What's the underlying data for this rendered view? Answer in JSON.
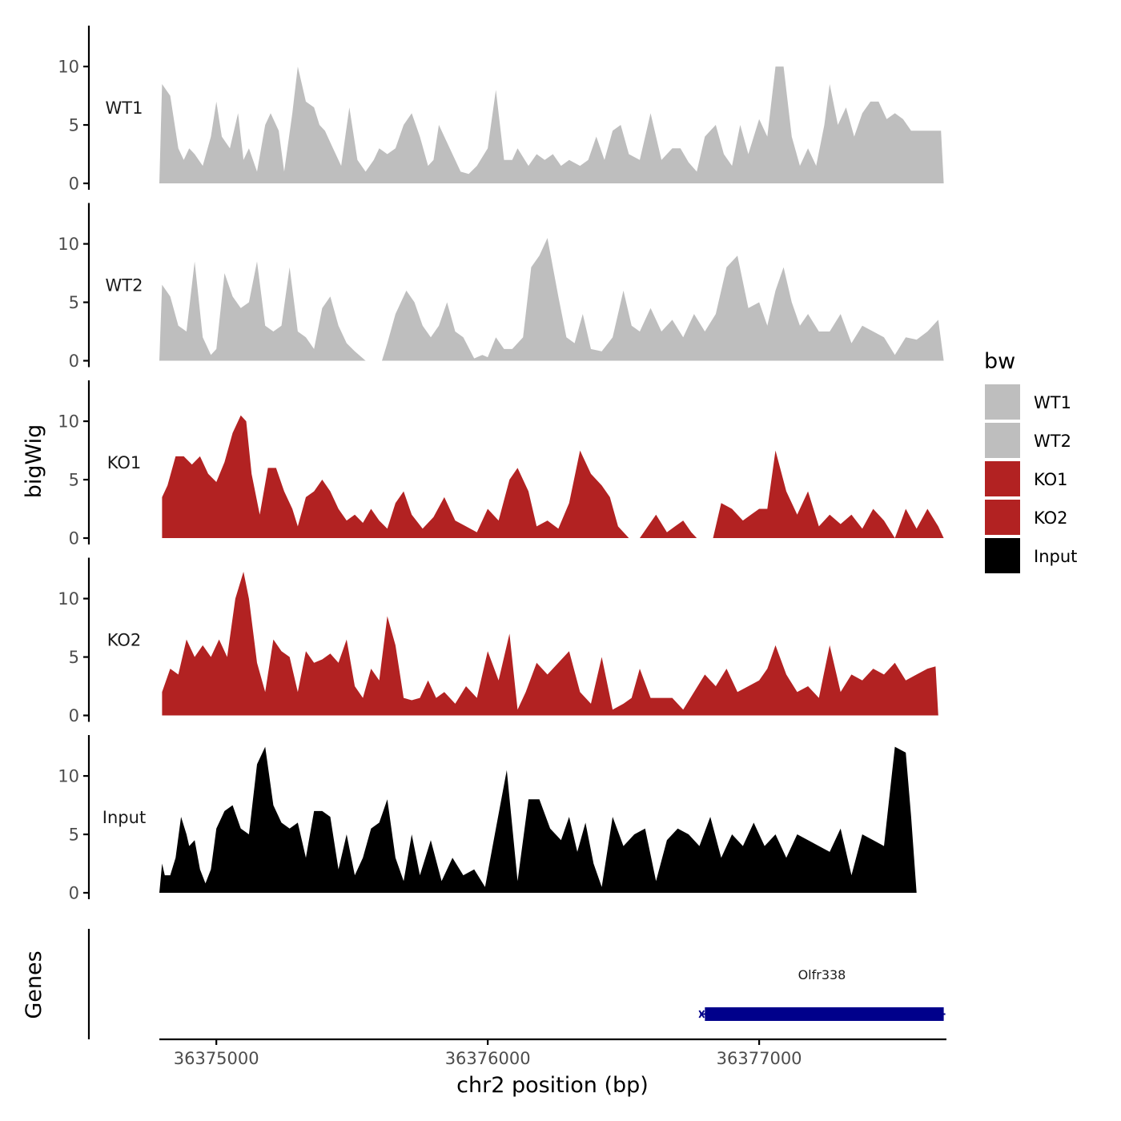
{
  "chart_data": {
    "type": "area",
    "title": "",
    "xlabel": "chr2 position (bp)",
    "ylabel": "bigWig",
    "genes_label": "Genes",
    "xlim": [
      36374790,
      36377690
    ],
    "ylim": [
      0,
      13.5
    ],
    "x_ticks": [
      {
        "value": 36375000,
        "label": "36375000"
      },
      {
        "value": 36376000,
        "label": "36376000"
      },
      {
        "value": 36377000,
        "label": "36377000"
      }
    ],
    "y_ticks": [
      {
        "value": 0,
        "label": "0"
      },
      {
        "value": 5,
        "label": "5"
      },
      {
        "value": 10,
        "label": "10"
      }
    ],
    "legend": {
      "title": "bw",
      "position": "right",
      "entries": [
        {
          "label": "WT1",
          "color": "#bebebe"
        },
        {
          "label": "WT2",
          "color": "#bebebe"
        },
        {
          "label": "KO1",
          "color": "#b22222"
        },
        {
          "label": "KO2",
          "color": "#b22222"
        },
        {
          "label": "Input",
          "color": "#000000"
        }
      ]
    },
    "series": [
      {
        "name": "WT1",
        "color": "#bebebe",
        "x": [
          36374790,
          36374800,
          36374830,
          36374860,
          36374880,
          36374900,
          36374920,
          36374950,
          36374980,
          36375000,
          36375020,
          36375050,
          36375080,
          36375100,
          36375120,
          36375150,
          36375180,
          36375200,
          36375230,
          36375250,
          36375280,
          36375300,
          36375330,
          36375360,
          36375380,
          36375400,
          36375430,
          36375460,
          36375490,
          36375520,
          36375550,
          36375580,
          36375600,
          36375630,
          36375660,
          36375690,
          36375720,
          36375750,
          36375780,
          36375800,
          36375820,
          36375860,
          36375900,
          36375930,
          36375960,
          36376000,
          36376030,
          36376060,
          36376090,
          36376110,
          36376150,
          36376180,
          36376210,
          36376240,
          36376270,
          36376300,
          36376340,
          36376370,
          36376400,
          36376430,
          36376460,
          36376490,
          36376520,
          36376560,
          36376600,
          36376640,
          36376680,
          36376710,
          36376740,
          36376770,
          36376800,
          36376840,
          36376870,
          36376900,
          36376930,
          36376960,
          36377000,
          36377030,
          36377060,
          36377090,
          36377120,
          36377150,
          36377180,
          36377210,
          36377240,
          36377260,
          36377290,
          36377320,
          36377350,
          36377380,
          36377410,
          36377440,
          36377470,
          36377500,
          36377530,
          36377560,
          36377590,
          36377620,
          36377650,
          36377670,
          36377680
        ],
        "values": [
          0,
          8.5,
          7.5,
          3,
          2,
          3,
          2.5,
          1.5,
          4,
          7,
          4,
          3,
          6,
          2,
          3,
          1,
          5,
          6,
          4.5,
          1,
          6,
          10,
          7,
          6.5,
          5,
          4.5,
          3,
          1.5,
          6.5,
          2,
          1,
          2,
          3,
          2.5,
          3,
          5,
          6,
          4,
          1.5,
          2,
          5,
          3,
          1,
          0.8,
          1.5,
          3,
          8,
          2,
          2,
          3,
          1.5,
          2.5,
          2,
          2.5,
          1.5,
          2,
          1.5,
          2,
          4,
          2,
          4.5,
          5,
          2.5,
          2,
          6,
          2,
          3,
          3,
          1.8,
          1,
          4,
          5,
          2.5,
          1.5,
          5,
          2.5,
          5.5,
          4,
          10,
          10,
          4,
          1.5,
          3,
          1.5,
          5,
          8.5,
          5,
          6.5,
          4,
          6,
          7,
          7,
          5.5,
          6,
          5.5,
          4.5,
          4.5,
          4.5,
          4.5,
          4.5,
          0
        ]
      },
      {
        "name": "WT2",
        "color": "#bebebe",
        "x": [
          36374790,
          36374800,
          36374830,
          36374860,
          36374890,
          36374920,
          36374950,
          36374980,
          36375000,
          36375030,
          36375060,
          36375090,
          36375120,
          36375150,
          36375180,
          36375210,
          36375240,
          36375270,
          36375300,
          36375330,
          36375360,
          36375390,
          36375420,
          36375450,
          36375480,
          36375510,
          36375550,
          36375570,
          36375590,
          36375600,
          36375610,
          36375630,
          36375660,
          36375700,
          36375730,
          36375760,
          36375790,
          36375820,
          36375850,
          36375880,
          36375910,
          36375950,
          36375980,
          36376000,
          36376030,
          36376060,
          36376090,
          36376130,
          36376160,
          36376190,
          36376220,
          36376260,
          36376290,
          36376320,
          36376350,
          36376380,
          36376420,
          36376460,
          36376500,
          36376530,
          36376560,
          36376600,
          36376640,
          36376680,
          36376720,
          36376760,
          36376800,
          36376840,
          36376880,
          36376920,
          36376960,
          36377000,
          36377030,
          36377060,
          36377090,
          36377120,
          36377150,
          36377180,
          36377220,
          36377260,
          36377300,
          36377340,
          36377380,
          36377420,
          36377460,
          36377500,
          36377540,
          36377580,
          36377620,
          36377660,
          36377680
        ],
        "values": [
          0,
          6.5,
          5.5,
          3,
          2.5,
          8.5,
          2,
          0.5,
          1,
          7.5,
          5.5,
          4.5,
          5,
          8.5,
          3,
          2.5,
          3,
          8,
          2.5,
          2,
          1,
          4.5,
          5.5,
          3,
          1.5,
          0.8,
          0,
          0,
          0,
          0,
          0,
          1.5,
          4,
          6,
          5,
          3,
          2,
          3,
          5,
          2.5,
          2,
          0.2,
          0.5,
          0.3,
          2,
          1,
          1,
          2,
          8,
          9,
          10.5,
          5.5,
          2,
          1.5,
          4,
          1,
          0.8,
          2,
          6,
          3,
          2.5,
          4.5,
          2.5,
          3.5,
          2,
          4,
          2.5,
          4,
          8,
          9,
          4.5,
          5,
          3,
          6,
          8,
          5,
          3,
          4,
          2.5,
          2.5,
          4,
          1.5,
          3,
          2.5,
          2,
          0.5,
          2,
          1.8,
          2.5,
          3.5,
          0
        ]
      },
      {
        "name": "KO1",
        "color": "#b22222",
        "x": [
          36374800,
          36374820,
          36374850,
          36374880,
          36374910,
          36374940,
          36374970,
          36375000,
          36375030,
          36375060,
          36375090,
          36375110,
          36375130,
          36375160,
          36375190,
          36375220,
          36375250,
          36375280,
          36375300,
          36375330,
          36375360,
          36375390,
          36375420,
          36375450,
          36375480,
          36375510,
          36375540,
          36375570,
          36375600,
          36375630,
          36375660,
          36375690,
          36375720,
          36375760,
          36375800,
          36375840,
          36375880,
          36375920,
          36375960,
          36376000,
          36376040,
          36376080,
          36376110,
          36376150,
          36376180,
          36376220,
          36376260,
          36376300,
          36376340,
          36376380,
          36376420,
          36376450,
          36376480,
          36376520,
          36376560,
          36376590,
          36376620,
          36376660,
          36376690,
          36376720,
          36376750,
          36376770,
          36376800,
          36376830,
          36376860,
          36376900,
          36376940,
          36376970,
          36377000,
          36377030,
          36377060,
          36377100,
          36377140,
          36377180,
          36377220,
          36377260,
          36377300,
          36377340,
          36377380,
          36377420,
          36377460,
          36377500,
          36377540,
          36377580,
          36377620,
          36377660,
          36377680
        ],
        "values": [
          3.5,
          4.5,
          7,
          7,
          6.3,
          7,
          5.5,
          4.8,
          6.5,
          9,
          10.5,
          10,
          5.5,
          2,
          6,
          6,
          4,
          2.5,
          1,
          3.5,
          4,
          5,
          4,
          2.5,
          1.5,
          2,
          1.3,
          2.5,
          1.5,
          0.8,
          3,
          4,
          2,
          0.8,
          1.8,
          3.5,
          1.5,
          1,
          0.5,
          2.5,
          1.5,
          5,
          6,
          4,
          1,
          1.5,
          0.8,
          3,
          7.5,
          5.5,
          4.5,
          3.5,
          1,
          0,
          0,
          1,
          2,
          0.5,
          1,
          1.5,
          0.5,
          0,
          0,
          0,
          3,
          2.5,
          1.5,
          2,
          2.5,
          2.5,
          7.5,
          4,
          2,
          4,
          1,
          2,
          1.2,
          2,
          0.8,
          2.5,
          1.5,
          0,
          2.5,
          0.8,
          2.5,
          1,
          0
        ]
      },
      {
        "name": "KO2",
        "color": "#b22222",
        "x": [
          36374800,
          36374830,
          36374860,
          36374890,
          36374920,
          36374950,
          36374980,
          36375010,
          36375040,
          36375070,
          36375100,
          36375120,
          36375150,
          36375180,
          36375210,
          36375240,
          36375270,
          36375300,
          36375330,
          36375360,
          36375390,
          36375420,
          36375450,
          36375480,
          36375510,
          36375540,
          36375570,
          36375600,
          36375630,
          36375660,
          36375690,
          36375720,
          36375750,
          36375780,
          36375810,
          36375840,
          36375880,
          36375920,
          36375960,
          36376000,
          36376040,
          36376080,
          36376110,
          36376140,
          36376180,
          36376220,
          36376260,
          36376300,
          36376340,
          36376380,
          36376420,
          36376460,
          36376500,
          36376530,
          36376560,
          36376600,
          36376640,
          36376680,
          36376720,
          36376760,
          36376800,
          36376840,
          36376880,
          36376920,
          36376960,
          36377000,
          36377030,
          36377060,
          36377100,
          36377140,
          36377180,
          36377220,
          36377260,
          36377300,
          36377340,
          36377380,
          36377420,
          36377460,
          36377500,
          36377540,
          36377580,
          36377620,
          36377650,
          36377660
        ],
        "values": [
          2,
          4,
          3.5,
          6.5,
          5,
          6,
          5,
          6.5,
          5,
          10,
          12.3,
          10,
          4.5,
          2,
          6.5,
          5.5,
          5,
          2,
          5.5,
          4.5,
          4.8,
          5.3,
          4.5,
          6.5,
          2.5,
          1.5,
          4,
          3,
          8.5,
          6,
          1.5,
          1.3,
          1.5,
          3,
          1.5,
          2,
          1,
          2.5,
          1.5,
          5.5,
          3,
          7,
          0.5,
          2,
          4.5,
          3.5,
          4.5,
          5.5,
          2,
          1,
          5,
          0.5,
          1,
          1.5,
          4,
          1.5,
          1.5,
          1.5,
          0.5,
          2,
          3.5,
          2.5,
          4,
          2,
          2.5,
          3,
          4,
          6,
          3.5,
          2,
          2.5,
          1.5,
          6,
          2,
          3.5,
          3,
          4,
          3.5,
          4.5,
          3,
          3.5,
          4,
          4.2,
          0
        ]
      },
      {
        "name": "Input",
        "color": "#000000",
        "x": [
          36374790,
          36374800,
          36374810,
          36374830,
          36374850,
          36374870,
          36374890,
          36374900,
          36374920,
          36374940,
          36374960,
          36374980,
          36375000,
          36375030,
          36375060,
          36375090,
          36375120,
          36375150,
          36375180,
          36375210,
          36375240,
          36375270,
          36375300,
          36375330,
          36375360,
          36375390,
          36375420,
          36375450,
          36375480,
          36375510,
          36375540,
          36375570,
          36375600,
          36375630,
          36375660,
          36375690,
          36375720,
          36375750,
          36375790,
          36375830,
          36375870,
          36375910,
          36375950,
          36375990,
          36376030,
          36376070,
          36376110,
          36376150,
          36376190,
          36376230,
          36376270,
          36376300,
          36376330,
          36376360,
          36376390,
          36376420,
          36376460,
          36376500,
          36376540,
          36376580,
          36376620,
          36376660,
          36376700,
          36376740,
          36376780,
          36376820,
          36376860,
          36376900,
          36376940,
          36376980,
          36377020,
          36377060,
          36377100,
          36377140,
          36377180,
          36377220,
          36377260,
          36377300,
          36377340,
          36377380,
          36377420,
          36377460,
          36377500,
          36377540,
          36377560,
          36377580,
          36377600,
          36377640,
          36377680,
          36377690
        ],
        "values": [
          0,
          2.5,
          1.5,
          1.5,
          3,
          6.5,
          5,
          4,
          4.5,
          2,
          0.8,
          2,
          5.5,
          7,
          7.5,
          5.5,
          5,
          11,
          12.5,
          7.5,
          6,
          5.5,
          6,
          3,
          7,
          7,
          6.5,
          2,
          5,
          1.5,
          3,
          5.5,
          6,
          8,
          3,
          1,
          5,
          1.5,
          4.5,
          1,
          3,
          1.5,
          2,
          0.5,
          5.5,
          10.5,
          1,
          8,
          8,
          5.5,
          4.5,
          6.5,
          3.5,
          6,
          2.5,
          0.5,
          6.5,
          4,
          5,
          5.5,
          1,
          4.5,
          5.5,
          5,
          4,
          6.5,
          3,
          5,
          4,
          6,
          4,
          5,
          3,
          5,
          4.5,
          4,
          3.5,
          5.5,
          1.5,
          5,
          4.5,
          4,
          12.5,
          12,
          6.5,
          0,
          0,
          0,
          0,
          0
        ]
      }
    ],
    "genes": [
      {
        "name": "Olfr338",
        "start": 36376800,
        "end": 36377680,
        "strand": "+",
        "color": "#00008b"
      }
    ]
  }
}
